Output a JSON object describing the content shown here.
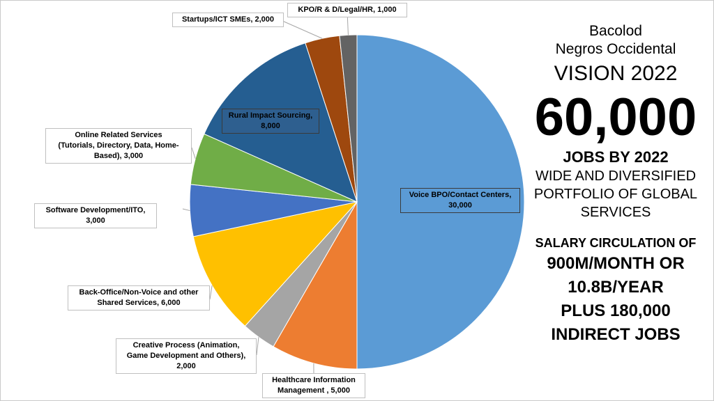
{
  "chart_data": {
    "type": "pie",
    "title": "",
    "slices": [
      {
        "label": "Voice BPO/Contact Centers, 30,000",
        "value": 30000,
        "color": "#5b9bd5"
      },
      {
        "label": "Healthcare Information Management , 5,000",
        "value": 5000,
        "color": "#ed7d31"
      },
      {
        "label": "Creative Process (Animation, Game Development and Others), 2,000",
        "value": 2000,
        "color": "#a5a5a5"
      },
      {
        "label": "Back-Office/Non-Voice and other Shared Services, 6,000",
        "value": 6000,
        "color": "#ffc000"
      },
      {
        "label": "Software Development/ITO, 3,000",
        "value": 3000,
        "color": "#4472c4"
      },
      {
        "label": "Online Related Services (Tutorials, Directory, Data, Home-Based), 3,000",
        "value": 3000,
        "color": "#70ad47"
      },
      {
        "label": "Rural Impact Sourcing, 8,000",
        "value": 8000,
        "color": "#255e91"
      },
      {
        "label": "Startups/ICT SMEs, 2,000",
        "value": 2000,
        "color": "#9e480e"
      },
      {
        "label": "KPO/R & D/Legal/HR, 1,000",
        "value": 1000,
        "color": "#636363"
      }
    ],
    "legend": "none"
  },
  "labels": {
    "voice": [
      "Voice BPO/Contact Centers,",
      "30,000"
    ],
    "healthcare": [
      "Healthcare Information",
      "Management , 5,000"
    ],
    "creative": [
      "Creative Process (Animation,",
      "Game Development and Others),",
      "2,000"
    ],
    "backoffice": [
      "Back-Office/Non-Voice and other",
      "Shared Services, 6,000"
    ],
    "software": [
      "Software Development/ITO,",
      "3,000"
    ],
    "online": [
      "Online Related Services",
      "(Tutorials, Directory, Data, Home-",
      "Based), 3,000"
    ],
    "rural": [
      "Rural Impact Sourcing,",
      "8,000"
    ],
    "startups": [
      "Startups/ICT SMEs, 2,000"
    ],
    "kpo": [
      "KPO/R & D/Legal/HR, 1,000"
    ]
  },
  "panel": {
    "city": "Bacolod",
    "province": "Negros Occidental",
    "vision": "VISION 2022",
    "jobs_number": "60,000",
    "jobs_by": "JOBS BY 2022",
    "portfolio_1": "WIDE AND DIVERSIFIED",
    "portfolio_2": "PORTFOLIO OF GLOBAL",
    "portfolio_3": "SERVICES",
    "salary_head": "SALARY CIRCULATION OF",
    "salary_1": "900M/MONTH OR",
    "salary_2": "10.8B/YEAR",
    "salary_3": "PLUS 180,000",
    "salary_4": "INDIRECT JOBS"
  }
}
